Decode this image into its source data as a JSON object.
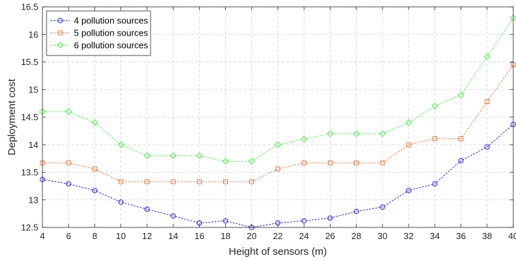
{
  "chart_data": {
    "type": "line",
    "title": "",
    "xlabel": "Height of sensors (m)",
    "ylabel": "Deployment cost",
    "x": [
      4,
      6,
      8,
      10,
      12,
      14,
      16,
      18,
      20,
      22,
      24,
      26,
      28,
      30,
      32,
      34,
      36,
      38,
      40
    ],
    "xlim": [
      4,
      40
    ],
    "ylim": [
      12.5,
      16.5
    ],
    "xticks": [
      "4",
      "6",
      "8",
      "10",
      "12",
      "14",
      "16",
      "18",
      "20",
      "22",
      "24",
      "26",
      "28",
      "30",
      "32",
      "34",
      "36",
      "38",
      "40"
    ],
    "yticks": [
      "12.5",
      "13",
      "13.5",
      "14",
      "14.5",
      "15",
      "15.5",
      "16",
      "16.5"
    ],
    "grid": true,
    "legend_position": "top-left",
    "series": [
      {
        "name": "4 pollution sources",
        "color": "#0000ff",
        "marker": "circle",
        "values": [
          13.37,
          13.29,
          13.17,
          12.96,
          12.83,
          12.71,
          12.58,
          12.62,
          12.5,
          12.58,
          12.62,
          12.67,
          12.79,
          12.87,
          13.17,
          13.29,
          13.71,
          13.96,
          14.37
        ]
      },
      {
        "name": "5 pollution sources",
        "color": "#e26a2c",
        "marker": "square",
        "values": [
          13.67,
          13.67,
          13.56,
          13.33,
          13.33,
          13.33,
          13.33,
          13.33,
          13.33,
          13.56,
          13.67,
          13.67,
          13.67,
          13.67,
          14.0,
          14.11,
          14.11,
          14.78,
          15.45
        ]
      },
      {
        "name": "6 pollution sources",
        "color": "#33ee33",
        "marker": "diamond",
        "values": [
          14.6,
          14.6,
          14.4,
          14.0,
          13.8,
          13.8,
          13.8,
          13.7,
          13.7,
          14.0,
          14.1,
          14.2,
          14.2,
          14.2,
          14.4,
          14.7,
          14.9,
          15.6,
          16.3
        ]
      }
    ]
  }
}
